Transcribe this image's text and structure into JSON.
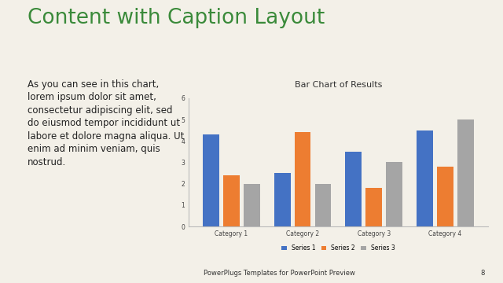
{
  "slide": {
    "title": "Content with Caption Layout",
    "caption": "As you can see in this chart, lorem ipsum dolor sit amet, consectetur adipiscing elit, sed do eiusmod tempor incididunt ut labore et dolore magna aliqua. Ut enim ad minim veniam, quis nostrud.",
    "footer": "PowerPlugs Templates for PowerPoint Preview",
    "page": 8
  },
  "chart_data": {
    "type": "bar",
    "title": "Bar Chart of Results",
    "categories": [
      "Category 1",
      "Category 2",
      "Category 3",
      "Category 4"
    ],
    "series": [
      {
        "name": "Series 1",
        "color": "#4472c4",
        "values": [
          4.3,
          2.5,
          3.5,
          4.5
        ]
      },
      {
        "name": "Series 2",
        "color": "#ed7d31",
        "values": [
          2.4,
          4.4,
          1.8,
          2.8
        ]
      },
      {
        "name": "Series 3",
        "color": "#a5a5a5",
        "values": [
          2,
          2,
          3,
          5
        ]
      }
    ],
    "ylim": [
      0,
      6
    ],
    "yticks": [
      0,
      1,
      2,
      3,
      4,
      5,
      6
    ],
    "grid": false,
    "legend": "bottom"
  }
}
